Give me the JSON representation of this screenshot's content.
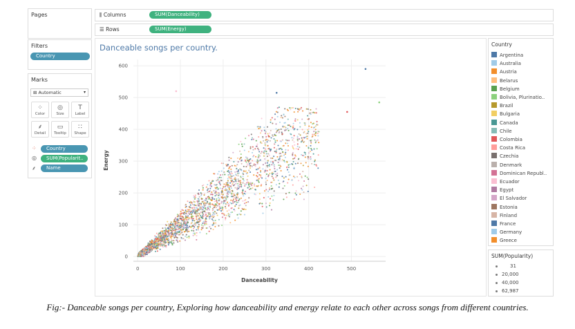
{
  "pages": {
    "title": "Pages"
  },
  "shelves": {
    "columns_label": "Columns",
    "columns_pill": "SUM(Danceability)",
    "rows_label": "Rows",
    "rows_pill": "SUM(Energy)"
  },
  "filters": {
    "title": "Filters",
    "pill": "Country"
  },
  "marks": {
    "title": "Marks",
    "type": "Automatic",
    "buttons": [
      "Color",
      "Size",
      "Label",
      "Detail",
      "Tooltip",
      "Shape"
    ],
    "fields": [
      {
        "name": "Country",
        "color": "#4996b2"
      },
      {
        "name": "SUM(Popularit..",
        "color": "#3fb27f"
      },
      {
        "name": "Name",
        "color": "#4996b2"
      }
    ]
  },
  "legend": {
    "title": "Country",
    "items": [
      {
        "label": "Argentina",
        "color": "#4e79a7"
      },
      {
        "label": "Australia",
        "color": "#a0cbe8"
      },
      {
        "label": "Austria",
        "color": "#f28e2b"
      },
      {
        "label": "Belarus",
        "color": "#ffbe7d"
      },
      {
        "label": "Belgium",
        "color": "#59a14f"
      },
      {
        "label": "Bolivia, Plurinatio..",
        "color": "#8cd17d"
      },
      {
        "label": "Brazil",
        "color": "#b6992d"
      },
      {
        "label": "Bulgaria",
        "color": "#f1ce63"
      },
      {
        "label": "Canada",
        "color": "#499894"
      },
      {
        "label": "Chile",
        "color": "#86bcb6"
      },
      {
        "label": "Colombia",
        "color": "#e15759"
      },
      {
        "label": "Costa Rica",
        "color": "#ff9d9a"
      },
      {
        "label": "Czechia",
        "color": "#79706e"
      },
      {
        "label": "Denmark",
        "color": "#bab0ac"
      },
      {
        "label": "Dominican Republ..",
        "color": "#d37295"
      },
      {
        "label": "Ecuador",
        "color": "#fabfd2"
      },
      {
        "label": "Egypt",
        "color": "#b07aa1"
      },
      {
        "label": "El Salvador",
        "color": "#d4a6c8"
      },
      {
        "label": "Estonia",
        "color": "#9d7660"
      },
      {
        "label": "Finland",
        "color": "#d7b5a6"
      },
      {
        "label": "France",
        "color": "#4e79a7"
      },
      {
        "label": "Germany",
        "color": "#a0cbe8"
      },
      {
        "label": "Greece",
        "color": "#f28e2b"
      }
    ]
  },
  "size_legend": {
    "title": "SUM(Popularity)",
    "items": [
      "31",
      "20,000",
      "40,000",
      "62,987"
    ]
  },
  "chart_data": {
    "type": "scatter",
    "title": "Danceable songs per country.",
    "xlabel": "Danceability",
    "ylabel": "Energy",
    "xlim": [
      -10,
      580
    ],
    "ylim": [
      -15,
      620
    ],
    "xticks": [
      0,
      100,
      200,
      300,
      400,
      500
    ],
    "yticks": [
      0,
      100,
      200,
      300,
      400,
      500,
      600
    ],
    "grid": true,
    "trend": "Energy increases roughly linearly with danceability; thousands of points clustered densely between 0-300 danceability and 0-350 energy, with sparse outliers up to about 560 danceability and 590 energy.",
    "notable_points": [
      {
        "x": 533,
        "y": 590
      },
      {
        "x": 565,
        "y": 485
      },
      {
        "x": 490,
        "y": 455
      },
      {
        "x": 90,
        "y": 520
      },
      {
        "x": 325,
        "y": 515
      }
    ]
  },
  "caption": "Fig:- Danceable songs per country, Exploring how danceability and energy relate to each other across songs from different countries."
}
